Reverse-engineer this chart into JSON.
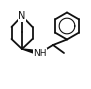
{
  "bg_color": "#ffffff",
  "line_color": "#111111",
  "lw": 1.3,
  "figsize": [
    0.91,
    0.89
  ],
  "dpi": 100,
  "N_text": "N",
  "N_fontsize": 7,
  "NH_text": "NH",
  "NH_fontsize": 6.5
}
